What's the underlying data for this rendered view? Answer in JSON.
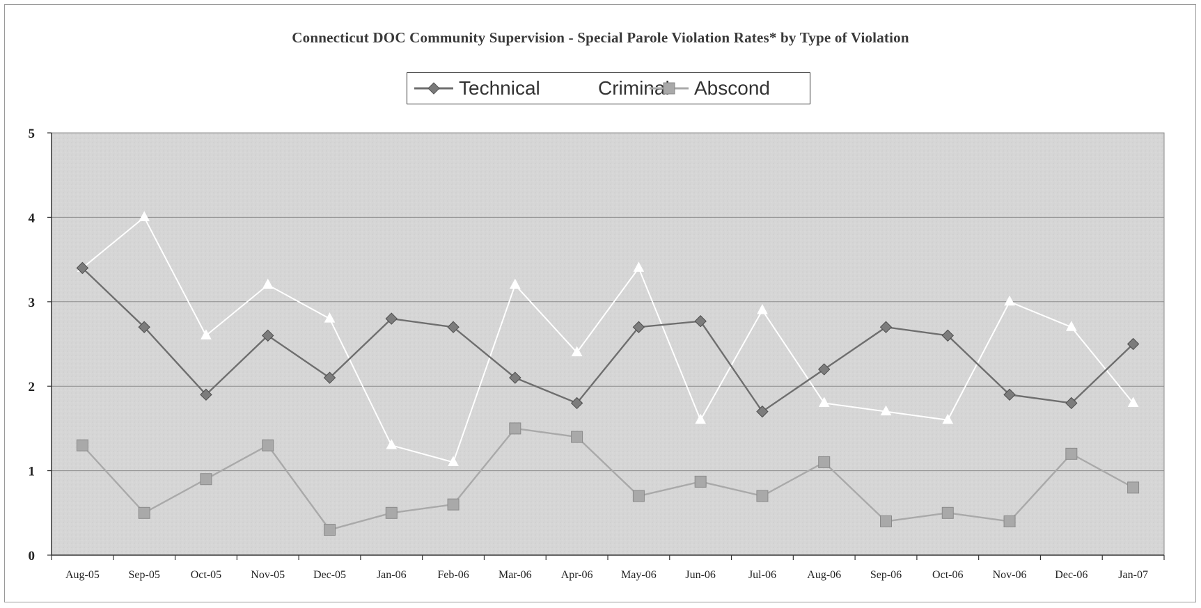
{
  "chart_data": {
    "type": "line",
    "title": "Connecticut DOC Community Supervision -  Special Parole Violation Rates* by Type of Violation",
    "categories": [
      "Aug-05",
      "Sep-05",
      "Oct-05",
      "Nov-05",
      "Dec-05",
      "Jan-06",
      "Feb-06",
      "Mar-06",
      "Apr-06",
      "May-06",
      "Jun-06",
      "Jul-06",
      "Aug-06",
      "Sep-06",
      "Oct-06",
      "Nov-06",
      "Dec-06",
      "Jan-07"
    ],
    "ylim": [
      0,
      5
    ],
    "yticks": [
      "0",
      "1",
      "2",
      "3",
      "4",
      "5"
    ],
    "grid": true,
    "legend_position": "top-center",
    "series": [
      {
        "name": "Technical",
        "marker": "diamond",
        "color": "#6e6e6e",
        "values": [
          3.4,
          2.7,
          1.9,
          2.6,
          2.1,
          2.8,
          2.7,
          2.1,
          1.8,
          2.7,
          2.77,
          1.7,
          2.2,
          2.7,
          2.6,
          1.9,
          1.8,
          2.5
        ]
      },
      {
        "name": "Criminal",
        "marker": "triangle",
        "color": "#ffffff",
        "values": [
          3.4,
          4.0,
          2.6,
          3.2,
          2.8,
          1.3,
          1.1,
          3.2,
          2.4,
          3.4,
          1.6,
          2.9,
          1.8,
          1.7,
          1.6,
          3.0,
          2.7,
          1.8
        ]
      },
      {
        "name": "Abscond",
        "marker": "square",
        "color": "#a9a9a9",
        "values": [
          1.3,
          0.5,
          0.9,
          1.3,
          0.3,
          0.5,
          0.6,
          1.5,
          1.4,
          0.7,
          0.87,
          0.7,
          1.1,
          0.4,
          0.5,
          0.4,
          1.2,
          0.8
        ]
      }
    ]
  }
}
